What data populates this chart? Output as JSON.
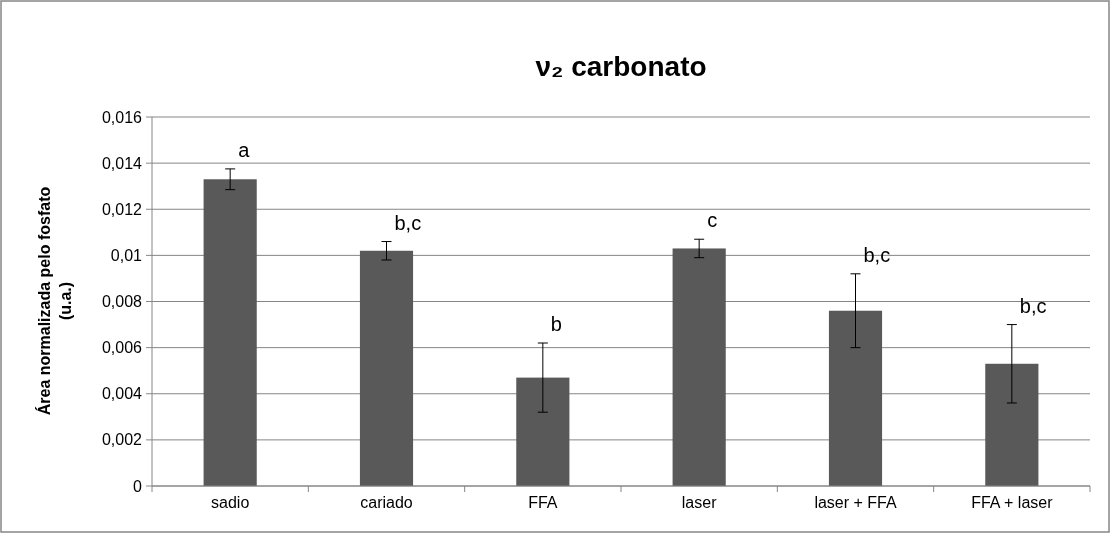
{
  "chart_data": {
    "type": "bar",
    "title": "ν₂ carbonato",
    "ylabel": "Área normalizada pelo fosfato (u.a.)",
    "categories": [
      "sadio",
      "cariado",
      "FFA",
      "laser",
      "laser + FFA",
      "FFA + laser"
    ],
    "values": [
      0.0133,
      0.0102,
      0.0047,
      0.0103,
      0.0076,
      0.0053
    ],
    "errors": [
      0.00045,
      0.0004,
      0.0015,
      0.0004,
      0.0016,
      0.0017
    ],
    "color": "#595959",
    "ylim": [
      0,
      0.016
    ],
    "yticks": [
      0,
      {
        "value": 0.002,
        "label": "0,002"
      },
      {
        "value": 0.004,
        "label": "0,004"
      },
      {
        "value": 0.006,
        "label": "0,006"
      },
      {
        "value": 0.008,
        "label": "0,008"
      },
      {
        "value": 0.01,
        "label": "0,01"
      },
      {
        "value": 0.012,
        "label": "0,012"
      },
      {
        "value": 0.014,
        "label": "0,014"
      },
      {
        "value": 0.016,
        "label": "0,016"
      }
    ],
    "grid": "y",
    "annotations": [
      {
        "text": "a",
        "x": "sadio",
        "y": 0.01375
      },
      {
        "text": "b,c",
        "x": "cariado",
        "y": 0.0106
      },
      {
        "text": "b",
        "x": "FFA",
        "y": 0.0062
      },
      {
        "text": "c",
        "x": "laser",
        "y": 0.0107
      },
      {
        "text": "b,c",
        "x": "laser + FFA",
        "y": 0.0092
      },
      {
        "text": "b,c",
        "x": "FFA + laser",
        "y": 0.007
      }
    ]
  }
}
